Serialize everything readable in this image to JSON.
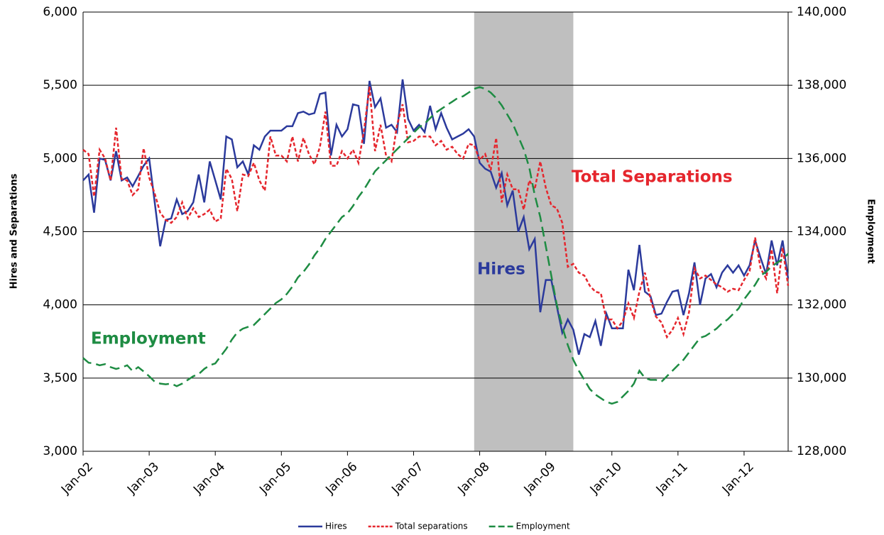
{
  "chart_data": {
    "type": "line",
    "y_label": "Hires and Separations",
    "y2_label": "Employment",
    "categories": [
      "Jan-02",
      null,
      null,
      null,
      null,
      null,
      null,
      null,
      null,
      null,
      null,
      null,
      "Jan-03",
      null,
      null,
      null,
      null,
      null,
      null,
      null,
      null,
      null,
      null,
      null,
      "Jan-04",
      null,
      null,
      null,
      null,
      null,
      null,
      null,
      null,
      null,
      null,
      null,
      "Jan-05",
      null,
      null,
      null,
      null,
      null,
      null,
      null,
      null,
      null,
      null,
      null,
      "Jan-06",
      null,
      null,
      null,
      null,
      null,
      null,
      null,
      null,
      null,
      null,
      null,
      "Jan-07",
      null,
      null,
      null,
      null,
      null,
      null,
      null,
      null,
      null,
      null,
      null,
      "Jan-08",
      null,
      null,
      null,
      null,
      null,
      null,
      null,
      null,
      null,
      null,
      null,
      "Jan-09",
      null,
      null,
      null,
      null,
      null,
      null,
      null,
      null,
      null,
      null,
      null,
      "Jan-10",
      null,
      null,
      null,
      null,
      null,
      null,
      null,
      null,
      null,
      null,
      null,
      "Jan-11",
      null,
      null,
      null,
      null,
      null,
      null,
      null,
      null,
      null,
      null,
      null,
      "Jan-12",
      null,
      null,
      null,
      null,
      null,
      null,
      null,
      null
    ],
    "shaded_range": [
      71,
      89
    ],
    "shade_color": "#bfbfbf",
    "series": [
      {
        "name": "Hires",
        "color": "#2b3a9c",
        "dash": "none",
        "values": [
          4850,
          4890,
          4630,
          5000,
          4990,
          4850,
          5050,
          4850,
          4870,
          4810,
          4880,
          4950,
          5000,
          4700,
          4400,
          4580,
          4590,
          4720,
          4620,
          4640,
          4700,
          4890,
          4700,
          4980,
          4850,
          4720,
          5150,
          5130,
          4940,
          4980,
          4890,
          5090,
          5060,
          5150,
          5190,
          5190,
          5190,
          5220,
          5220,
          5310,
          5320,
          5300,
          5310,
          5440,
          5450,
          5020,
          5230,
          5150,
          5200,
          5370,
          5360,
          5100,
          5530,
          5350,
          5410,
          5210,
          5230,
          5180,
          5540,
          5270,
          5190,
          5230,
          5180,
          5360,
          5200,
          5310,
          5210,
          5130,
          5150,
          5170,
          5200,
          5150,
          4970,
          4930,
          4910,
          4800,
          4900,
          4680,
          4780,
          4500,
          4600,
          4380,
          4450,
          3950,
          4170,
          4170,
          3990,
          3810,
          3900,
          3830,
          3660,
          3800,
          3780,
          3890,
          3720,
          3940,
          3840,
          3840,
          3840,
          4240,
          4100,
          4410,
          4090,
          4060,
          3930,
          3940,
          4020,
          4090,
          4100,
          3930,
          4080,
          4290,
          4000,
          4180,
          4210,
          4120,
          4220,
          4270,
          4220,
          4270,
          4200,
          4270,
          4440,
          4320,
          4210,
          4440,
          4270,
          4440,
          4180
        ]
      },
      {
        "name": "Total separations",
        "color": "#e5262d",
        "dash": "5,3",
        "values": [
          5060,
          5030,
          4740,
          5060,
          5000,
          4850,
          5210,
          4860,
          4850,
          4750,
          4790,
          5070,
          4870,
          4760,
          4630,
          4580,
          4560,
          4600,
          4700,
          4590,
          4660,
          4600,
          4620,
          4650,
          4570,
          4590,
          4930,
          4860,
          4640,
          4890,
          4880,
          4970,
          4850,
          4780,
          5150,
          5020,
          5020,
          4980,
          5150,
          4980,
          5140,
          5030,
          4960,
          5080,
          5320,
          4950,
          4950,
          5050,
          5000,
          5060,
          4970,
          5190,
          5490,
          5050,
          5230,
          5020,
          4980,
          5230,
          5370,
          5110,
          5120,
          5150,
          5150,
          5150,
          5090,
          5120,
          5060,
          5080,
          5030,
          5000,
          5100,
          5090,
          4990,
          5030,
          4920,
          5140,
          4700,
          4890,
          4790,
          4790,
          4650,
          4850,
          4790,
          4980,
          4800,
          4680,
          4660,
          4560,
          4260,
          4280,
          4220,
          4200,
          4130,
          4090,
          4080,
          3900,
          3900,
          3840,
          3890,
          4010,
          3910,
          4090,
          4220,
          4040,
          3920,
          3880,
          3780,
          3830,
          3910,
          3800,
          3950,
          4250,
          4180,
          4200,
          4170,
          4140,
          4120,
          4090,
          4110,
          4100,
          4170,
          4230,
          4460,
          4250,
          4180,
          4380,
          4080,
          4390,
          4130
        ]
      },
      {
        "name": "Employment",
        "color": "#1e8c43",
        "dash": "14,7",
        "axis": "y2",
        "values": [
          130550,
          130420,
          130400,
          130350,
          130380,
          130300,
          130250,
          130290,
          130350,
          130190,
          130300,
          130180,
          130050,
          129900,
          129850,
          129830,
          129850,
          129780,
          129850,
          129950,
          130050,
          130110,
          130250,
          130350,
          130400,
          130600,
          130800,
          131050,
          131250,
          131350,
          131400,
          131450,
          131600,
          131750,
          131900,
          132050,
          132150,
          132300,
          132500,
          132750,
          132900,
          133100,
          133350,
          133550,
          133800,
          134000,
          134200,
          134400,
          134500,
          134700,
          134950,
          135150,
          135400,
          135650,
          135800,
          135950,
          136100,
          136250,
          136400,
          136550,
          136700,
          136850,
          136950,
          137100,
          137250,
          137350,
          137450,
          137550,
          137650,
          137700,
          137800,
          137900,
          137950,
          137900,
          137800,
          137650,
          137450,
          137200,
          136950,
          136600,
          136250,
          135750,
          135000,
          134400,
          133600,
          132800,
          132000,
          131400,
          130900,
          130500,
          130200,
          129950,
          129700,
          129550,
          129450,
          129350,
          129300,
          129350,
          129500,
          129650,
          129850,
          130200,
          130000,
          129950,
          129950,
          129900,
          130050,
          130200,
          130350,
          130500,
          130700,
          130900,
          131100,
          131150,
          131250,
          131350,
          131500,
          131600,
          131750,
          131900,
          132150,
          132350,
          132550,
          132800,
          132900,
          133050,
          133150,
          133250,
          133400
        ]
      }
    ],
    "annotations": [
      {
        "text": "Total Separations",
        "color": "#e5262d"
      },
      {
        "text": "Hires",
        "color": "#2b3a9c"
      },
      {
        "text": "Employment",
        "color": "#1e8c43"
      }
    ],
    "ylim": [
      3000,
      6000
    ],
    "yticks": [
      {
        "value": 3000,
        "label": "3,000"
      },
      {
        "value": 3500,
        "label": "3,500"
      },
      {
        "value": 4000,
        "label": "4,000"
      },
      {
        "value": 4500,
        "label": "4,500"
      },
      {
        "value": 5000,
        "label": "5,000"
      },
      {
        "value": 5500,
        "label": "5,500"
      },
      {
        "value": 6000,
        "label": "6,000"
      }
    ],
    "y2lim": [
      128000,
      140000
    ],
    "y2ticks": [
      {
        "value": 128000,
        "label": "128,000"
      },
      {
        "value": 130000,
        "label": "130,000"
      },
      {
        "value": 132000,
        "label": "132,000"
      },
      {
        "value": 134000,
        "label": "134,000"
      },
      {
        "value": 136000,
        "label": "136,000"
      },
      {
        "value": 138000,
        "label": "138,000"
      },
      {
        "value": 140000,
        "label": "140,000"
      }
    ],
    "grid": true,
    "legend": "bottom"
  }
}
